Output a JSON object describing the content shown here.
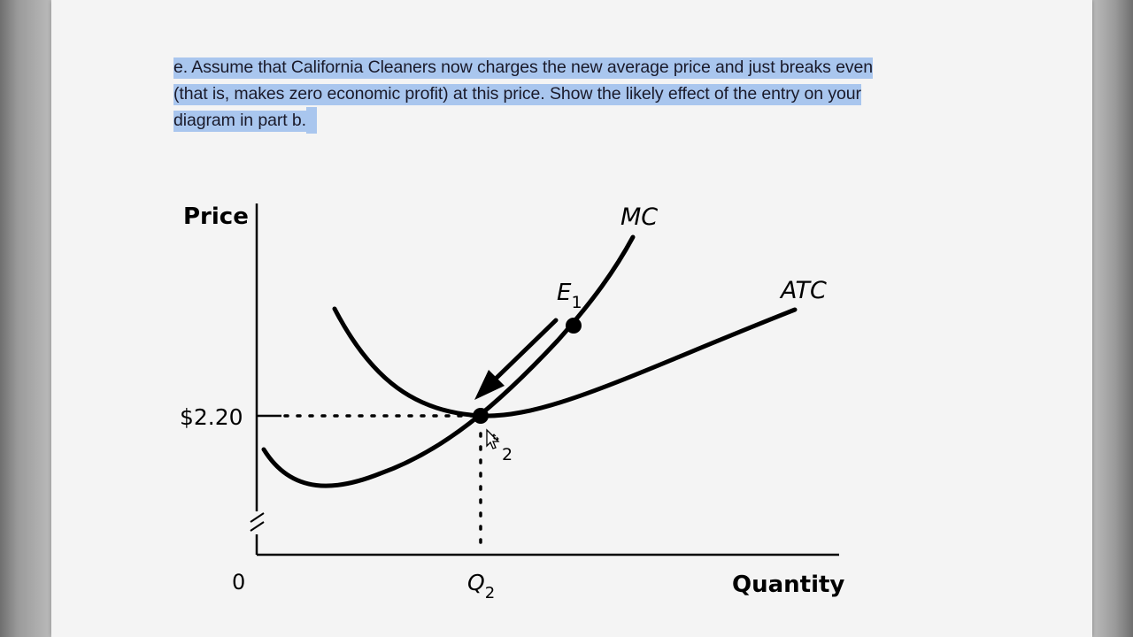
{
  "question": {
    "line1": "e. Assume that California Cleaners now charges the new average price and just breaks even",
    "line2": "(that is, makes zero economic profit) at this price. Show the likely effect of the entry on your",
    "line3": "diagram in part b."
  },
  "diagram": {
    "y_axis_label": "Price",
    "x_axis_label": "Quantity",
    "origin_label": "0",
    "price_tick_label": "$2.20",
    "quantity_tick_label": "Q",
    "quantity_tick_sub": "2",
    "mc_label": "MC",
    "atc_label": "ATC",
    "e1_label": "E",
    "e1_sub": "1",
    "e2_sub": "2"
  },
  "colors": {
    "page": "#f4f4f4",
    "highlight": "#a9c6ee",
    "ink": "#000000"
  }
}
